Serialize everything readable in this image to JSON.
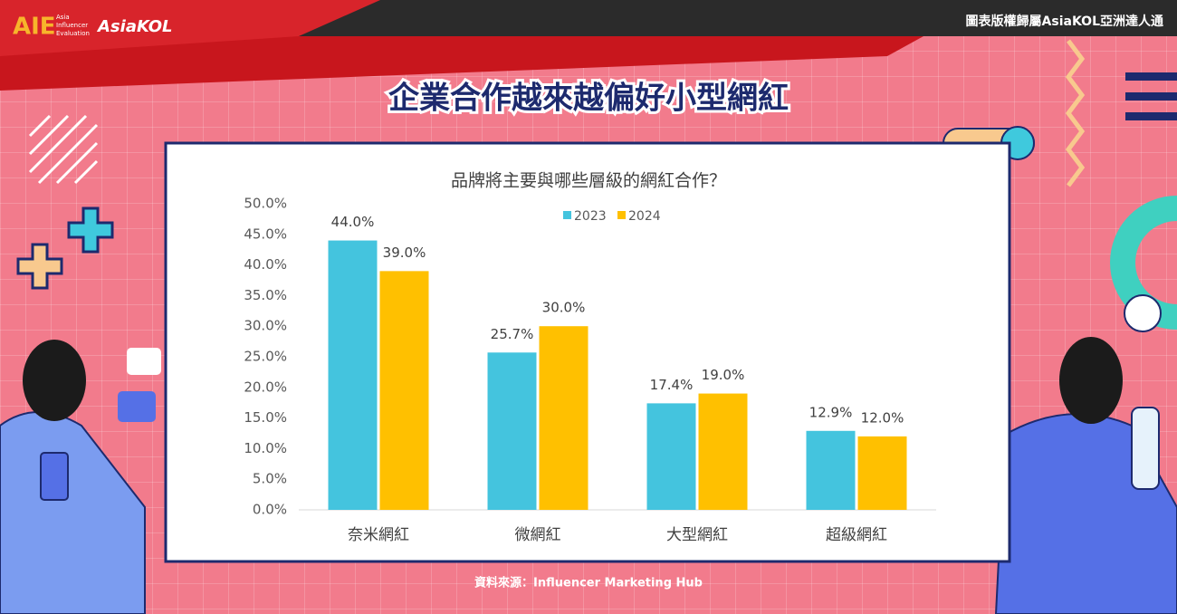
{
  "header": {
    "logo": "AIE",
    "logo_sub": [
      "Asia",
      "Influencer",
      "Evaluation"
    ],
    "brand": "AsiaKOL",
    "copyright": "圖表版權歸屬AsiaKOL亞洲達人通",
    "title": "企業合作越來越偏好小型網紅",
    "source": "資料來源：Influencer Marketing Hub"
  },
  "chart_data": {
    "type": "bar",
    "title": "品牌將主要與哪些層級的網紅合作？",
    "categories": [
      "奈米網紅",
      "微網紅",
      "大型網紅",
      "超級網紅"
    ],
    "series": [
      {
        "name": "2023",
        "color": "#44c4de",
        "values": [
          44.0,
          25.7,
          17.4,
          12.9
        ],
        "value_labels": [
          "44.0%",
          "25.7%",
          "17.4%",
          "12.9%"
        ]
      },
      {
        "name": "2024",
        "color": "#ffc000",
        "values": [
          39.0,
          30.0,
          19.0,
          12.0
        ],
        "value_labels": [
          "39.0%",
          "30.0%",
          "19.0%",
          "12.0%"
        ]
      }
    ],
    "ylim": [
      0,
      50
    ],
    "yticks": [
      {
        "value": 0,
        "label": "0.0%"
      },
      {
        "value": 5,
        "label": "5.0%"
      },
      {
        "value": 10,
        "label": "10.0%"
      },
      {
        "value": 15,
        "label": "15.0%"
      },
      {
        "value": 20,
        "label": "20.0%"
      },
      {
        "value": 25,
        "label": "25.0%"
      },
      {
        "value": 30,
        "label": "30.0%"
      },
      {
        "value": 35,
        "label": "35.0%"
      },
      {
        "value": 40,
        "label": "40.0%"
      },
      {
        "value": 45,
        "label": "45.0%"
      },
      {
        "value": 50,
        "label": "50.0%"
      }
    ],
    "grid": false,
    "legend": "top"
  }
}
